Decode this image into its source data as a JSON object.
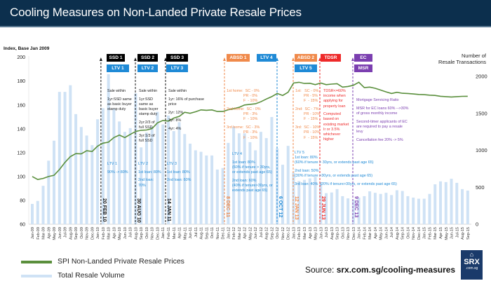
{
  "header": {
    "title": "Cooling Measures on Non-Landed Private Resale Prices"
  },
  "chart_data": {
    "type": "bar+line",
    "left_axis_label": "Index, Base Jan 2009",
    "right_axis_label": [
      "Number of",
      "Resale Transactions"
    ],
    "ylim_left": [
      60,
      200
    ],
    "yticks_left": [
      60,
      80,
      100,
      120,
      140,
      160,
      180,
      200
    ],
    "ylim_right": [
      0,
      2000
    ],
    "yticks_right": [
      0,
      500,
      1000,
      1500,
      2000
    ],
    "categories": [
      "Jan-09",
      "Feb-09",
      "Mar-09",
      "Apr-09",
      "May-09",
      "Jun-09",
      "Jul-09",
      "Aug-09",
      "Sep-09",
      "Oct-09",
      "Nov-09",
      "Dec-09",
      "Jan-10",
      "Feb-10",
      "Mar-10",
      "Apr-10",
      "May-10",
      "Jun-10",
      "Jul-10",
      "Aug-10",
      "Sep-10",
      "Oct-10",
      "Nov-10",
      "Dec-10",
      "Jan-11",
      "Feb-11",
      "Mar-11",
      "Apr-11",
      "May-11",
      "Jun-11",
      "Jul-11",
      "Aug-11",
      "Sep-11",
      "Oct-11",
      "Nov-11",
      "Dec-11",
      "Jan-12",
      "Feb-12",
      "Mar-12",
      "Apr-12",
      "May-12",
      "Jun-12",
      "Jul-12",
      "Aug-12",
      "Sep-12",
      "Oct-12",
      "Nov-12",
      "Dec-12",
      "Jan-13",
      "Feb-13",
      "Mar-13",
      "Apr-13",
      "May-13",
      "Jun-13",
      "Jul-13",
      "Aug-13",
      "Sep-13",
      "Oct-13",
      "Nov-13",
      "Dec-13",
      "Jan-14",
      "Feb-14",
      "Mar-14",
      "Apr-14",
      "May-14",
      "Jun-14",
      "Jul-14",
      "Aug-14",
      "Sep-14",
      "Oct-14",
      "Nov-14",
      "Dec-14",
      "Jan-15",
      "Feb-15",
      "Mar-15",
      "Apr-15",
      "May-15",
      "Jun-15",
      "Jul-15",
      "Aug-15",
      "Sep-15"
    ],
    "series": [
      {
        "name": "SPI Non-Landed Private Resale Prices",
        "axis": "left",
        "type": "line",
        "color": "#5a8f3c",
        "values": [
          100,
          97.5,
          98.4,
          100,
          101,
          105.9,
          111.8,
          116.7,
          119.2,
          119,
          121.6,
          121,
          125.5,
          128,
          128.8,
          132.7,
          134.7,
          132.7,
          135.3,
          137.8,
          138.8,
          139,
          140.2,
          145,
          147,
          146.5,
          149,
          150.4,
          153.9,
          153,
          154.3,
          155.9,
          155.5,
          155.9,
          154.5,
          154.5,
          156,
          156.8,
          158,
          160,
          160.5,
          161,
          162.7,
          165,
          167,
          169.6,
          168,
          170.6,
          178.4,
          179,
          178,
          178.2,
          177,
          178.4,
          177,
          177.5,
          177.8,
          175,
          175.5,
          176.5,
          179,
          174.5,
          175,
          174,
          172.5,
          171,
          169.6,
          170.6,
          169.8,
          169.6,
          169.2,
          168.8,
          168.6,
          168.2,
          168,
          167.3,
          167,
          166.7,
          167,
          167.2,
          167.3
        ]
      },
      {
        "name": "Total Resale Volume",
        "axis": "right",
        "type": "bar",
        "color": "#cfe2f5",
        "values": [
          275,
          315,
          520,
          860,
          1130,
          1790,
          1790,
          1880,
          1490,
          1315,
          1200,
          1070,
          1420,
          1570,
          2030,
          1560,
          1390,
          1250,
          1300,
          1770,
          1040,
          1240,
          1320,
          1520,
          1350,
          1470,
          1260,
          1380,
          1220,
          1090,
          1000,
          980,
          930,
          930,
          740,
          760,
          1100,
          1320,
          1230,
          1230,
          1110,
          1000,
          1250,
          1165,
          1450,
          1025,
          805,
          1060,
          700,
          585,
          600,
          620,
          640,
          560,
          420,
          430,
          475,
          380,
          350,
          330,
          360,
          380,
          445,
          425,
          410,
          425,
          395,
          460,
          450,
          380,
          360,
          345,
          345,
          410,
          540,
          580,
          570,
          615,
          560,
          475,
          455
        ]
      }
    ],
    "markers": [
      {
        "id": "m1",
        "month": "Feb-10",
        "date": "20 FEB 10",
        "color": "#111111",
        "boxes": [
          {
            "label": "SSD 1",
            "color": "#000000"
          },
          {
            "label": "LTV 1",
            "color": "#1f8ad6"
          }
        ]
      },
      {
        "id": "m2",
        "month": "Aug-10",
        "date": "30 AUG 10",
        "color": "#111111",
        "boxes": [
          {
            "label": "SSD 2",
            "color": "#000000"
          },
          {
            "label": "LTV 2",
            "color": "#1f8ad6"
          }
        ]
      },
      {
        "id": "m3",
        "month": "Jan-11",
        "date": "14 JAN 11",
        "color": "#111111",
        "boxes": [
          {
            "label": "SSD 3",
            "color": "#000000"
          },
          {
            "label": "LTV 3",
            "color": "#1f8ad6"
          }
        ]
      },
      {
        "id": "m4",
        "month": "Dec-11",
        "date": "8 DEC 11",
        "color": "#f08a4b",
        "boxes": [
          {
            "label": "ABSD 1",
            "color": "#f08a4b"
          }
        ]
      },
      {
        "id": "m5",
        "month": "Oct-12",
        "date": "6 OCT 12",
        "color": "#1f8ad6",
        "boxes": [
          {
            "label": "LTV 4",
            "color": "#1f8ad6"
          }
        ]
      },
      {
        "id": "m6",
        "month": "Jan-13",
        "date": "12 JAN 13",
        "color": "#f08a4b",
        "boxes": [
          {
            "label": "ABSD 2",
            "color": "#f08a4b"
          },
          {
            "label": "LTV 5",
            "color": "#1f8ad6"
          }
        ]
      },
      {
        "id": "m7",
        "month": "Jun-13",
        "date": "29 JUN 13",
        "color": "#ee2a2a",
        "boxes": [
          {
            "label": "TDSR",
            "color": "#ee2a2a"
          }
        ]
      },
      {
        "id": "m8",
        "month": "Dec-13",
        "date": "9 DEC 13",
        "color": "#7b3fb0",
        "boxes": [
          {
            "label": "EC",
            "color": "#7b3fb0"
          },
          {
            "label": "MSR",
            "color": "#7b3fb0"
          }
        ]
      }
    ],
    "annotations": [
      {
        "id": "ssd1",
        "color": "#222222",
        "lines": [
          "Sale within",
          "",
          "1yr:SSD same",
          "as basic buyer",
          "stamp duty"
        ]
      },
      {
        "id": "ssd2",
        "color": "#222222",
        "lines": [
          "Sale within",
          "",
          "1yr:SSD",
          "same as",
          "basic buyer",
          "stamp duty",
          "",
          "2yr:2/3 of",
          "full SSD",
          "",
          "3yr:1/3 of",
          "full SSD"
        ]
      },
      {
        "id": "ssd3",
        "color": "#222222",
        "lines": [
          "Sale within",
          "",
          "1yr: 16% of purchase",
          "price",
          "",
          "2yr: 12%",
          "",
          "3yr: 8%",
          "",
          "4yr: 4%"
        ]
      },
      {
        "id": "absd1",
        "color": "#f08a4b",
        "lines": [
          "1st home:  SC - 0%",
          "                PR - 0%",
          "                F  - 10%",
          "",
          "2nd home:  SC - 0%",
          "                PR - 3%",
          "                F  - 10%",
          "",
          "3rd home:  SC - 3%",
          "                PR - 3%",
          "                F  - 10%"
        ]
      },
      {
        "id": "absd2",
        "color": "#f08a4b",
        "lines": [
          "1st:   SC - 0%",
          "        PR - 5%",
          "        F  - 15%",
          "",
          "2nd:  SC - 7%",
          "        PR - 10%",
          "        F  - 15%",
          "",
          "3rd:  SC - 10%",
          "        PR - 10%",
          "        F  - 15%"
        ]
      },
      {
        "id": "tdsr",
        "color": "#ee2a2a",
        "lines": [
          "TDSR<=60%",
          "income when",
          "applying for",
          "property loan",
          "",
          "Computed",
          "based on",
          "existing market",
          "Ir or 3.5%",
          "whichever",
          "higher"
        ]
      },
      {
        "id": "msr",
        "color": "#7b3fb0",
        "lines": [
          "Mortgage Servicing Ratio",
          "",
          "MSR for EC loans 60% -->30%",
          "of gross monthly income",
          "",
          "Second-timer applicants of EC",
          "are required to pay a resale",
          "levy",
          "",
          "Cancellation fee 20% -> 5%"
        ]
      },
      {
        "id": "ltv1",
        "color": "#1f8ad6",
        "lines": [
          "LTV 1",
          "",
          "90% -> 80%"
        ]
      },
      {
        "id": "ltv2",
        "color": "#1f8ad6",
        "lines": [
          "LTV 2",
          "",
          "1st loan: 80%",
          "",
          "2nd loan:",
          "70%"
        ]
      },
      {
        "id": "ltv3",
        "color": "#1f8ad6",
        "lines": [
          "LTV 3",
          "",
          "1st loan: 80%",
          "",
          "2nd loan: 60%"
        ]
      },
      {
        "id": "ltv4",
        "color": "#1f8ad6",
        "lines": [
          "LTV 4",
          "",
          "1st loan: 80%",
          "(60% if tenure > 30yrs,",
          "or extends past age 65)",
          "",
          "2nd loan: 60%",
          "(40% if tenure>30yrs, or",
          "extends past age 65)"
        ]
      },
      {
        "id": "ltv5",
        "color": "#1f8ad6",
        "lines": [
          "LTV 5",
          "1st loan: 80%",
          "(60% if tenure > 30yrs, or extends past age 65)",
          "",
          "2nd loan: 50%",
          "(30% if tenure >30yrs, or extends past age 65)",
          "",
          "3rd loan: 40%  (20% if tenure>30yrs, or extends past age 65)"
        ]
      }
    ],
    "legend": {
      "placement": "bottom-left"
    }
  },
  "legend": {
    "line_label": "SPI Non-Landed Private Resale Prices",
    "bar_label": "Total Resale Volume"
  },
  "source": {
    "prefix": "Source: ",
    "link": "srx.com.sg/cooling-measures"
  },
  "logo": {
    "text": "SRX",
    "sub": ".com.sg",
    "icon": "house-icon"
  }
}
